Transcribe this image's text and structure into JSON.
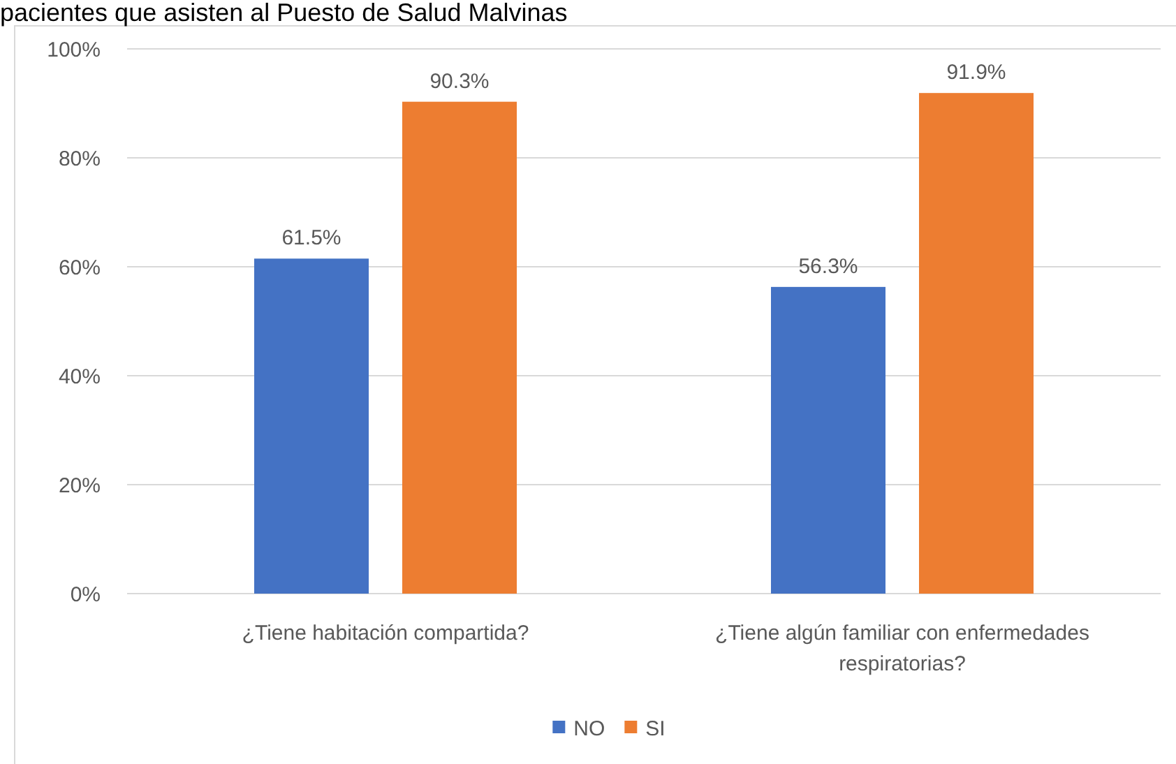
{
  "chart_data": {
    "type": "bar",
    "title": "pacientes que asisten al Puesto de Salud Malvinas",
    "categories": [
      "¿Tiene habitación compartida?",
      "¿Tiene algún familiar con enfermedades respiratorias?"
    ],
    "series": [
      {
        "name": "NO",
        "color": "#4472c4",
        "values": [
          61.5,
          56.3
        ],
        "value_labels": [
          "61.5%",
          "56.3%"
        ]
      },
      {
        "name": "SI",
        "color": "#ed7d31",
        "values": [
          90.3,
          91.9
        ],
        "value_labels": [
          "90.3%",
          "91.9%"
        ]
      }
    ],
    "ylim": [
      0,
      100
    ],
    "yticks": [
      {
        "value": 0,
        "label": "0%"
      },
      {
        "value": 20,
        "label": "20%"
      },
      {
        "value": 40,
        "label": "40%"
      },
      {
        "value": 60,
        "label": "60%"
      },
      {
        "value": 80,
        "label": "80%"
      },
      {
        "value": 100,
        "label": "100%"
      }
    ],
    "grid": "y",
    "legend": "bottom"
  }
}
